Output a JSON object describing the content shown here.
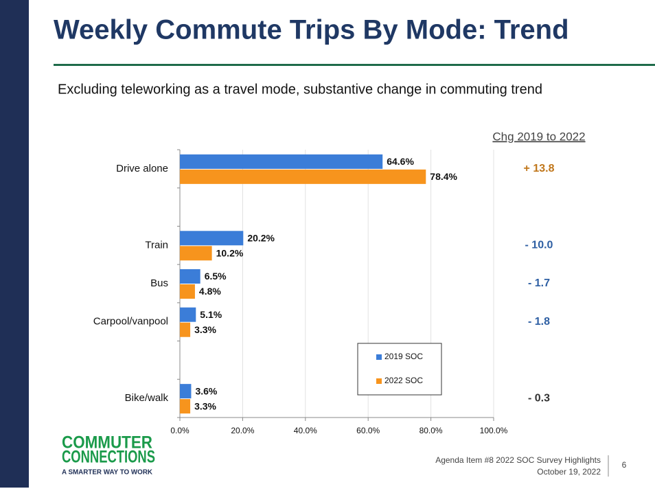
{
  "chart_data": {
    "type": "bar",
    "orientation": "horizontal",
    "title": "Weekly Commute Trips By Mode: Trend",
    "subtitle": "Excluding teleworking as a travel mode, substantive change in commuting trend",
    "categories": [
      "Drive alone",
      null,
      "Train",
      "Bus",
      "Carpool/vanpool",
      null,
      "Bike/walk"
    ],
    "series": [
      {
        "name": "2019 SOC",
        "color": "#3b7dd8",
        "values": [
          64.6,
          null,
          20.2,
          6.5,
          5.1,
          null,
          3.6
        ],
        "value_labels": [
          "64.6%",
          null,
          "20.2%",
          "6.5%",
          "5.1%",
          null,
          "3.6%"
        ]
      },
      {
        "name": "2022 SOC",
        "color": "#f7941d",
        "values": [
          78.4,
          null,
          10.2,
          4.8,
          3.3,
          null,
          3.3
        ],
        "value_labels": [
          "78.4%",
          null,
          "10.2%",
          "4.8%",
          "3.3%",
          null,
          "3.3%"
        ]
      }
    ],
    "xlim": [
      0,
      100
    ],
    "xticks": [
      {
        "value": 0,
        "label": "0.0%"
      },
      {
        "value": 20,
        "label": "20.0%"
      },
      {
        "value": 40,
        "label": "40.0%"
      },
      {
        "value": 60,
        "label": "60.0%"
      },
      {
        "value": 80,
        "label": "80.0%"
      },
      {
        "value": 100,
        "label": "100.0%"
      }
    ],
    "grid": true,
    "change_title": "Chg 2019 to 2022",
    "changes": [
      13.8,
      null,
      -10.0,
      -1.7,
      -1.8,
      null,
      -0.3
    ],
    "change_labels": [
      "+ 13.8",
      null,
      "- 10.0",
      "- 1.7",
      "- 1.8",
      null,
      "- 0.3"
    ],
    "change_colors": [
      "#c0761a",
      null,
      "#2e5fa3",
      "#2e5fa3",
      "#2e5fa3",
      null,
      "#333333"
    ]
  },
  "footer": {
    "logo_line1": "COMMUTER",
    "logo_line2": "CONNECTIONS",
    "logo_tagline": "A SMARTER WAY TO WORK",
    "agenda": "Agenda Item #8 2022 SOC Survey Highlights",
    "date": "October 19, 2022",
    "page": "6"
  }
}
